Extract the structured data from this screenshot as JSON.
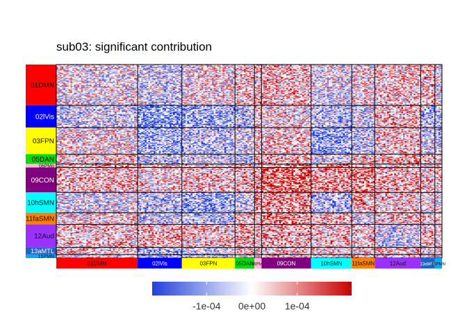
{
  "chart_data": {
    "type": "heatmap",
    "title": "sub03: significant contribution",
    "networks": [
      {
        "name": "01DMN",
        "size": 46,
        "color": "#ff0000",
        "text": "#111111"
      },
      {
        "name": "02lVis",
        "size": 25,
        "color": "#0000ff",
        "text": "#ffffff"
      },
      {
        "name": "03FPN",
        "size": 30,
        "color": "#ffff00",
        "text": "#111111"
      },
      {
        "name": "05DAN",
        "size": 11,
        "color": "#00e000",
        "text": "#111111"
      },
      {
        "name": "06PMo",
        "size": 4,
        "color": "#ffbcd8",
        "text": "#111111"
      },
      {
        "name": "09CON",
        "size": 28,
        "color": "#800080",
        "text": "#ffffff"
      },
      {
        "name": "10hSMN",
        "size": 23,
        "color": "#00ffff",
        "text": "#111111"
      },
      {
        "name": "11faSMN",
        "size": 13,
        "color": "#ff8000",
        "text": "#111111"
      },
      {
        "name": "12Aud",
        "size": 26,
        "color": "#9b30ff",
        "text": "#111111"
      },
      {
        "name": "13aMTL",
        "size": 8,
        "color": "#1e64c8",
        "text": "#ffffff"
      },
      {
        "name": "15PMN",
        "size": 4,
        "color": "#00aaff",
        "text": "#111111"
      }
    ],
    "block_means": [
      [
        0.0,
        -0.2,
        0.05,
        0.2,
        0.3,
        0.25,
        -0.1,
        0.1,
        0.2,
        0.2,
        0.0
      ],
      [
        -0.2,
        -0.7,
        -0.5,
        -0.3,
        0.2,
        0.1,
        -0.3,
        -0.2,
        0.3,
        -0.4,
        -0.3
      ],
      [
        0.05,
        -0.5,
        -0.3,
        -0.2,
        0.2,
        0.2,
        -0.5,
        -0.3,
        0.2,
        -0.2,
        -0.2
      ],
      [
        0.2,
        -0.3,
        -0.2,
        -0.4,
        0.4,
        0.3,
        -0.2,
        0.2,
        0.3,
        0.2,
        0.0
      ],
      [
        0.3,
        0.2,
        0.2,
        0.4,
        0.0,
        0.4,
        0.4,
        0.2,
        0.2,
        0.1,
        0.1
      ],
      [
        0.25,
        0.1,
        0.2,
        0.3,
        0.4,
        0.7,
        0.4,
        0.5,
        0.3,
        0.2,
        0.2
      ],
      [
        -0.1,
        -0.3,
        -0.5,
        -0.2,
        0.4,
        0.4,
        -0.4,
        0.3,
        0.2,
        0.1,
        0.0
      ],
      [
        0.1,
        -0.2,
        -0.3,
        0.2,
        0.2,
        0.5,
        0.3,
        -0.2,
        0.2,
        0.1,
        0.1
      ],
      [
        0.2,
        0.3,
        0.2,
        0.3,
        0.2,
        0.3,
        0.2,
        0.2,
        -0.2,
        0.2,
        0.1
      ],
      [
        0.2,
        -0.4,
        -0.2,
        0.2,
        0.1,
        0.2,
        0.1,
        0.1,
        0.2,
        -0.1,
        0.0
      ],
      [
        0.0,
        -0.3,
        -0.2,
        0.0,
        0.1,
        0.2,
        0.0,
        0.1,
        0.1,
        0.0,
        0.0
      ]
    ],
    "colorscale": {
      "low": "#2140d8",
      "mid": "#ffffff",
      "high": "#c80000"
    },
    "legend": {
      "position": "bottom",
      "range": [
        -0.00022,
        0.00022
      ],
      "ticks": [
        {
          "value": -0.0001,
          "label": "-1e-04"
        },
        {
          "value": 0,
          "label": "0e+00"
        },
        {
          "value": 0.0001,
          "label": "1e-04"
        }
      ]
    }
  }
}
